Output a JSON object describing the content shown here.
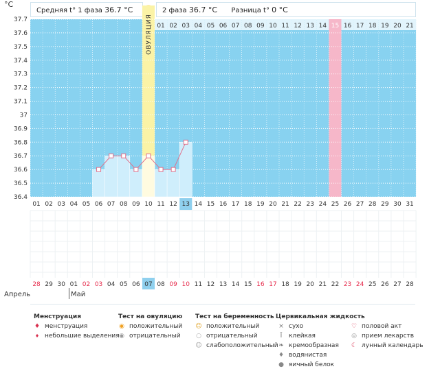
{
  "header": {
    "unit": "°C",
    "phase1_label": "Средняя t° 1 фаза",
    "phase1_value": "36.7 °C",
    "phase2_label": "2 фаза",
    "phase2_value": "36.7 °C",
    "diff_label": "Разница t°",
    "diff_value": "0 °C",
    "ovulation_icon": "sun-icon"
  },
  "chart_data": {
    "type": "line",
    "y_ticks": [
      "37.7",
      "37.6",
      "37.5",
      "37.4",
      "37.3",
      "37.2",
      "37.1",
      "37",
      "36.9",
      "36.8",
      "36.7",
      "36.6",
      "36.5",
      "36.4"
    ],
    "ylim": [
      36.4,
      37.7
    ],
    "cycle_days": [
      "01",
      "02",
      "03",
      "04",
      "05",
      "06",
      "07",
      "08",
      "09",
      "10",
      "11",
      "12",
      "13",
      "14",
      "15",
      "16",
      "17",
      "18",
      "19",
      "20",
      "21",
      "22",
      "23",
      "24",
      "25",
      "26",
      "27",
      "28",
      "29",
      "30",
      "31"
    ],
    "post_ovulation_days": [
      "01",
      "02",
      "03",
      "04",
      "05",
      "06",
      "07",
      "08",
      "09",
      "10",
      "11",
      "12",
      "13",
      "14",
      "15",
      "16",
      "17",
      "18",
      "19",
      "20",
      "21"
    ],
    "ovulation_day": "10",
    "ovulation_label": "ОВУЛЯЦИЯ",
    "highlight_post_day": "15",
    "today_day": "13",
    "series": [
      {
        "x": [
          "06",
          "07",
          "08",
          "09",
          "10",
          "11",
          "12",
          "13"
        ],
        "values": [
          36.6,
          36.7,
          36.7,
          36.6,
          36.7,
          36.6,
          36.6,
          36.8
        ]
      }
    ],
    "calendar_dates": [
      "28",
      "29",
      "30",
      "01",
      "02",
      "03",
      "04",
      "05",
      "06",
      "07",
      "08",
      "09",
      "10",
      "11",
      "12",
      "13",
      "14",
      "15",
      "16",
      "17",
      "18",
      "19",
      "20",
      "21",
      "22",
      "23",
      "24",
      "25",
      "26",
      "27",
      "28"
    ],
    "weekend_dates": [
      0,
      4,
      5,
      11,
      12,
      18,
      19,
      25,
      26
    ],
    "today_date_index": 9,
    "months": [
      {
        "label": "Апрель"
      },
      {
        "label": "Май"
      }
    ],
    "colors": {
      "grid_bg": "#88d2f0",
      "ovulation": "#fbf3a6",
      "highlight": "#f6b7c9",
      "bars": "#cfeefc",
      "line": "#e0708a",
      "weekend": "#e6294a",
      "today": "#8fd0ee"
    }
  },
  "legend": {
    "menstruation": {
      "title": "Менструация",
      "items": [
        {
          "icon": "blood-drop-icon",
          "glyph": "♦",
          "label": "менструация",
          "color": "#d9304f"
        },
        {
          "icon": "small-drop-icon",
          "glyph": "♦",
          "label": "небольшие выделения",
          "color": "#d9304f"
        }
      ]
    },
    "ovulation_test": {
      "title": "Тест на овуляцию",
      "items": [
        {
          "icon": "sun-positive-icon",
          "glyph": "◉",
          "label": "положительный",
          "color": "#f0a020"
        },
        {
          "icon": "sun-negative-icon",
          "glyph": "◉",
          "label": "отрицательный",
          "color": "#999999"
        }
      ]
    },
    "pregnancy_test": {
      "title": "Тест на беременность",
      "items": [
        {
          "icon": "smile-positive-icon",
          "glyph": "☺",
          "label": "положительный",
          "color": "#e0a020"
        },
        {
          "icon": "circle-negative-icon",
          "glyph": "○",
          "label": "отрицательный",
          "color": "#aaaaaa"
        },
        {
          "icon": "smile-weak-icon",
          "glyph": "☺",
          "label": "слабоположительный",
          "color": "#999999"
        }
      ]
    },
    "cervical_fluid": {
      "title": "Цервикальная жидкость",
      "items": [
        {
          "icon": "dry-x-icon",
          "glyph": "×",
          "label": "сухо",
          "color": "#777777"
        },
        {
          "icon": "sticky-icon",
          "glyph": "Ī",
          "label": "клейкая",
          "color": "#777777"
        },
        {
          "icon": "creamy-icon",
          "glyph": "❧",
          "label": "кремообразная",
          "color": "#777777"
        },
        {
          "icon": "watery-drop-icon",
          "glyph": "♦",
          "label": "водянистая",
          "color": "#888888"
        },
        {
          "icon": "egg-white-icon",
          "glyph": "●",
          "label": "яичный белок",
          "color": "#888888"
        }
      ]
    },
    "other": {
      "items": [
        {
          "icon": "heart-icon",
          "glyph": "♡",
          "label": "половой акт",
          "color": "#d9304f"
        },
        {
          "icon": "pill-icon",
          "glyph": "◎",
          "label": "прием лекарств",
          "color": "#999999"
        },
        {
          "icon": "moon-icon",
          "glyph": "☾",
          "label": "лунный календарь",
          "color": "#d9304f"
        }
      ]
    }
  }
}
